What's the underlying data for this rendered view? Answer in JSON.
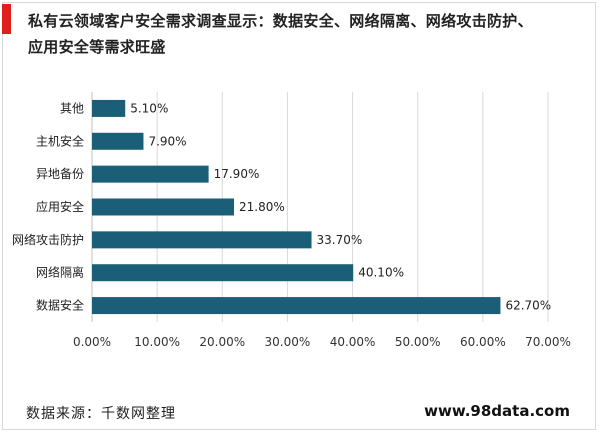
{
  "title": "私有云领域客户安全需求调查显示：数据安全、网络隔离、网络攻击防护、应用安全等需求旺盛",
  "footer": {
    "source": "数据来源：千数网整理",
    "site": "www.98data.com"
  },
  "chart_data": {
    "type": "bar",
    "orientation": "horizontal",
    "categories": [
      "其他",
      "主机安全",
      "异地备份",
      "应用安全",
      "网络攻击防护",
      "网络隔离",
      "数据安全"
    ],
    "values": [
      5.1,
      7.9,
      17.9,
      21.8,
      33.7,
      40.1,
      62.7
    ],
    "value_labels": [
      "5.10%",
      "7.90%",
      "17.90%",
      "21.80%",
      "33.70%",
      "40.10%",
      "62.70%"
    ],
    "xlim": [
      0,
      70
    ],
    "xticks": [
      0,
      10,
      20,
      30,
      40,
      50,
      60,
      70
    ],
    "xtick_labels": [
      "0.00%",
      "10.00%",
      "20.00%",
      "30.00%",
      "40.00%",
      "50.00%",
      "60.00%",
      "70.00%"
    ],
    "grid": true,
    "legend": false,
    "bar_color": "#1b5e78",
    "grid_color": "#d9d9d9"
  }
}
